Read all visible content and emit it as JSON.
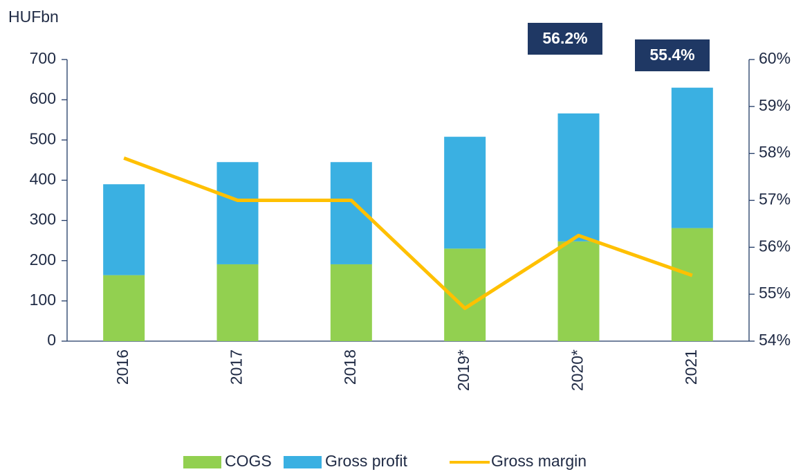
{
  "chart_data": {
    "type": "bar",
    "stacked": true,
    "y_label": "HUFbn",
    "categories": [
      "2016",
      "2017",
      "2018",
      "2019*",
      "2020*",
      "2021"
    ],
    "series": [
      {
        "name": "COGS",
        "color": "#92d050",
        "values": [
          164,
          191,
          191,
          230,
          248,
          281
        ]
      },
      {
        "name": "Gross profit",
        "color": "#3ab0e2",
        "values": [
          226,
          254,
          254,
          278,
          318,
          349
        ]
      },
      {
        "name": "Gross margin",
        "type": "line",
        "axis": "y2",
        "color": "#ffc000",
        "values": [
          57.9,
          57.0,
          57.0,
          54.7,
          56.25,
          55.4
        ]
      }
    ],
    "annotations": [
      "56.2%",
      "55.4%"
    ],
    "ylim": [
      0,
      700
    ],
    "yticks": [
      0,
      100,
      200,
      300,
      400,
      500,
      600,
      700
    ],
    "y2lim": [
      54,
      60
    ],
    "y2ticks": [
      {
        "value": 54,
        "label": "54%"
      },
      {
        "value": 55,
        "label": "55%"
      },
      {
        "value": 56,
        "label": "56%"
      },
      {
        "value": 57,
        "label": "57%"
      },
      {
        "value": 58,
        "label": "58%"
      },
      {
        "value": 59,
        "label": "59%"
      },
      {
        "value": 60,
        "label": "60%"
      }
    ],
    "legend": "bottom"
  }
}
